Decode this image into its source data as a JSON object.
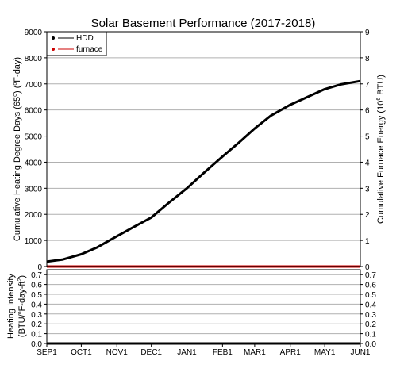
{
  "chart_data": [
    {
      "type": "line",
      "title": "Solar Basement Performance (2017-2018)",
      "ylabel_left": "Cumulative Heating Degree Days (65°) (°F-day)",
      "ylabel_right": "Cumulative Furnace Energy (10^6 BTU)",
      "ylim_left": [
        0,
        9000
      ],
      "ylim_right": [
        0,
        9
      ],
      "yticks_left": [
        "0",
        "1000",
        "2000",
        "3000",
        "4000",
        "5000",
        "6000",
        "7000",
        "8000",
        "9000"
      ],
      "yticks_right": [
        "0",
        "1",
        "2",
        "3",
        "4",
        "5",
        "6",
        "7",
        "8",
        "9"
      ],
      "x_day_labels": [
        "SEP1",
        "OCT1",
        "NOV1",
        "DEC1",
        "JAN1",
        "FEB1",
        "MAR1",
        "APR1",
        "MAY1",
        "JUN1"
      ],
      "x": [
        "2017-09-01",
        "2017-09-15",
        "2017-10-01",
        "2017-10-15",
        "2017-11-01",
        "2017-11-15",
        "2017-12-01",
        "2017-12-15",
        "2018-01-01",
        "2018-01-15",
        "2018-02-01",
        "2018-02-15",
        "2018-03-01",
        "2018-03-15",
        "2018-04-01",
        "2018-04-15",
        "2018-05-01",
        "2018-05-15",
        "2018-06-01"
      ],
      "grid": true,
      "legend_position": "top-left",
      "series": [
        {
          "name": "HDD",
          "axis": "left",
          "color": "#000000",
          "values": [
            190,
            270,
            470,
            740,
            1160,
            1500,
            1880,
            2400,
            3000,
            3560,
            4220,
            4740,
            5290,
            5780,
            6200,
            6480,
            6800,
            6980,
            7110
          ]
        },
        {
          "name": "furnace",
          "axis": "right",
          "color": "#cc0000",
          "values": [
            0,
            0,
            0,
            0,
            0,
            0,
            0,
            0,
            0,
            0,
            0,
            0,
            0,
            0,
            0,
            0,
            0,
            0,
            0
          ]
        }
      ]
    },
    {
      "type": "line",
      "ylabel": "Heating Intensity (BTU/°F-day-ft²)",
      "ylim": [
        0,
        0.75
      ],
      "yticks": [
        "0.0",
        "0.1",
        "0.2",
        "0.3",
        "0.4",
        "0.5",
        "0.6",
        "0.7"
      ],
      "yticks_right": [
        "0.0",
        "0.1",
        "0.2",
        "0.3",
        "0.4",
        "0.5",
        "0.6",
        "0.7"
      ],
      "grid": true,
      "series": [
        {
          "name": "intensity",
          "color": "#000000",
          "values": [
            0,
            0,
            0,
            0,
            0,
            0,
            0,
            0,
            0,
            0,
            0,
            0,
            0,
            0,
            0,
            0,
            0,
            0,
            0
          ]
        }
      ]
    }
  ]
}
